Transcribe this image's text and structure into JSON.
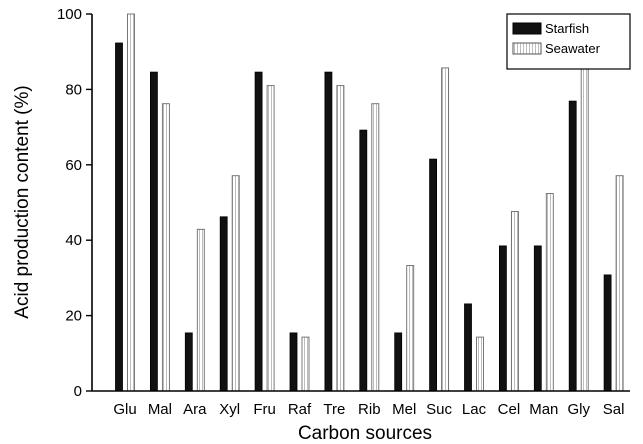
{
  "chart_data": {
    "type": "bar",
    "xlabel": "Carbon sources",
    "ylabel": "Acid production content (%)",
    "ylim": [
      0,
      100
    ],
    "yticks": [
      0,
      20,
      40,
      60,
      80,
      100
    ],
    "grid": false,
    "legend_position": "top-right",
    "categories": [
      "Glu",
      "Mal",
      "Ara",
      "Xyl",
      "Fru",
      "Raf",
      "Tre",
      "Rib",
      "Mel",
      "Suc",
      "Lac",
      "Cel",
      "Man",
      "Gly",
      "Sal"
    ],
    "series": [
      {
        "name": "Starfish",
        "color": "#111111",
        "style": "solid",
        "values": [
          92.3,
          84.6,
          15.4,
          46.2,
          84.6,
          15.4,
          84.6,
          69.2,
          15.4,
          61.5,
          23.1,
          38.5,
          38.5,
          76.9,
          30.8
        ]
      },
      {
        "name": "Seawater",
        "color": "#ffffff",
        "style": "hatched",
        "values": [
          100,
          76.2,
          42.9,
          57.1,
          81.0,
          14.3,
          81.0,
          76.2,
          33.3,
          85.7,
          14.3,
          47.6,
          52.4,
          85.7,
          57.1
        ]
      }
    ]
  }
}
